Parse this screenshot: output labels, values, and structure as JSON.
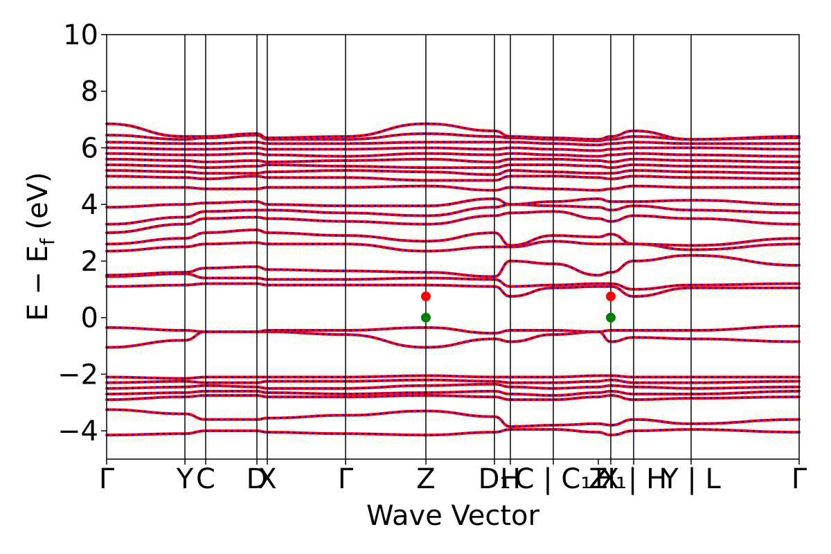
{
  "chart_data": {
    "type": "line",
    "title": "",
    "xlabel": "Wave Vector",
    "ylabel_main": "E − E",
    "ylabel_sub": "f",
    "ylabel_unit": " (eV)",
    "ylim": [
      -5,
      10
    ],
    "yticks": [
      -4,
      -2,
      0,
      2,
      4,
      6,
      8,
      10
    ],
    "ytick_labels": [
      "−4",
      "−2",
      "0",
      "2",
      "4",
      "6",
      "8",
      "10"
    ],
    "x_range": [
      0,
      1
    ],
    "kpath": [
      {
        "label": "Γ",
        "x": 0.0
      },
      {
        "label": "Y",
        "x": 0.113
      },
      {
        "label": "C",
        "x": 0.143
      },
      {
        "label": "D",
        "x": 0.217
      },
      {
        "label": "X",
        "x": 0.232
      },
      {
        "label": "Γ",
        "x": 0.345
      },
      {
        "label": "Z",
        "x": 0.461
      },
      {
        "label": "D₁",
        "x": 0.56
      },
      {
        "label": "H",
        "x": 0.583
      },
      {
        "label": "C | C₁",
        "x": 0.645
      },
      {
        "label": "Z",
        "x": 0.71
      },
      {
        "label": "H₁",
        "x": 0.728
      },
      {
        "label": "X | H",
        "x": 0.761
      },
      {
        "label": "Y | L",
        "x": 0.844
      },
      {
        "label": "Γ",
        "x": 1.0
      }
    ],
    "vlines_x": [
      0.113,
      0.143,
      0.217,
      0.232,
      0.345,
      0.461,
      0.56,
      0.583,
      0.645,
      0.728,
      0.761,
      0.844
    ],
    "series": [
      {
        "color": "#ff0000",
        "style": "solid"
      },
      {
        "color": "#0000ff",
        "style": "dotted"
      }
    ],
    "bands": [
      {
        "y": [
          -4.15,
          -4.1,
          -4.0,
          -4.0,
          -4.05,
          -4.1,
          -4.15,
          -4.05,
          -3.95,
          -3.95,
          -4.05,
          -4.15,
          -4.0,
          -3.95,
          -4.05,
          -4.15
        ]
      },
      {
        "y": [
          -3.25,
          -3.4,
          -3.6,
          -3.6,
          -3.55,
          -3.45,
          -3.3,
          -3.5,
          -3.85,
          -3.8,
          -3.75,
          -3.8,
          -3.6,
          -3.75,
          -3.6,
          -3.25
        ]
      },
      {
        "y": [
          -2.9,
          -2.8,
          -2.75,
          -2.75,
          -2.8,
          -2.8,
          -2.75,
          -2.8,
          -2.9,
          -2.9,
          -2.8,
          -2.75,
          -2.9,
          -2.85,
          -2.8,
          -2.7
        ]
      },
      {
        "y": [
          -2.7,
          -2.65,
          -2.6,
          -2.6,
          -2.65,
          -2.7,
          -2.65,
          -2.6,
          -2.7,
          -2.75,
          -2.65,
          -2.6,
          -2.7,
          -2.7,
          -2.6,
          -2.55
        ]
      },
      {
        "y": [
          -2.5,
          -2.45,
          -2.4,
          -2.45,
          -2.5,
          -2.5,
          -2.4,
          -2.35,
          -2.45,
          -2.5,
          -2.45,
          -2.4,
          -2.45,
          -2.5,
          -2.45,
          -2.4
        ]
      },
      {
        "y": [
          -2.3,
          -2.25,
          -2.3,
          -2.3,
          -2.25,
          -2.25,
          -2.2,
          -2.25,
          -2.3,
          -2.3,
          -2.25,
          -2.2,
          -2.3,
          -2.3,
          -2.25,
          -2.2
        ]
      },
      {
        "y": [
          -2.1,
          -2.15,
          -2.1,
          -2.1,
          -2.1,
          -2.1,
          -2.05,
          -2.1,
          -2.1,
          -2.1,
          -2.05,
          -2.05,
          -2.1,
          -2.1,
          -2.1,
          -2.05
        ]
      },
      {
        "y": [
          -1.05,
          -0.8,
          -0.5,
          -0.5,
          -0.5,
          -0.6,
          -1.05,
          -0.75,
          -0.85,
          -0.6,
          -0.5,
          -0.85,
          -0.7,
          -0.75,
          -0.85,
          -1.05
        ]
      },
      {
        "y": [
          -0.35,
          -0.45,
          -0.5,
          -0.5,
          -0.45,
          -0.45,
          -0.35,
          -0.55,
          -0.45,
          -0.45,
          -0.5,
          -0.45,
          -0.45,
          -0.45,
          -0.3,
          -0.35
        ]
      },
      {
        "y": [
          1.1,
          1.15,
          1.2,
          1.2,
          1.15,
          1.15,
          1.15,
          1.1,
          0.75,
          1.05,
          1.1,
          1.1,
          0.75,
          1.05,
          1.05,
          1.1
        ]
      },
      {
        "y": [
          1.45,
          1.55,
          1.4,
          1.4,
          1.35,
          1.35,
          1.4,
          1.35,
          1.1,
          1.15,
          1.2,
          1.2,
          1.0,
          1.15,
          1.2,
          1.4
        ]
      },
      {
        "y": [
          1.5,
          1.6,
          1.75,
          1.8,
          1.7,
          1.65,
          1.6,
          1.45,
          2.0,
          1.9,
          1.5,
          1.6,
          2.0,
          2.2,
          1.85,
          1.45
        ]
      },
      {
        "y": [
          2.35,
          2.5,
          2.6,
          2.65,
          2.6,
          2.6,
          2.35,
          2.5,
          2.5,
          2.7,
          2.6,
          2.6,
          2.6,
          2.4,
          2.6,
          2.4
        ]
      },
      {
        "y": [
          2.6,
          2.8,
          3.0,
          3.1,
          3.0,
          2.9,
          2.7,
          3.0,
          2.55,
          2.9,
          2.85,
          2.95,
          2.6,
          2.55,
          2.8,
          2.55
        ]
      },
      {
        "y": [
          3.0,
          3.3,
          3.5,
          3.55,
          3.5,
          3.4,
          3.3,
          3.6,
          3.7,
          3.75,
          3.5,
          3.4,
          3.6,
          3.5,
          3.3,
          3.2
        ]
      },
      {
        "y": [
          3.3,
          3.55,
          3.75,
          3.8,
          3.8,
          3.7,
          3.6,
          3.9,
          4.0,
          3.95,
          3.9,
          3.8,
          3.95,
          3.8,
          3.7,
          3.45
        ]
      },
      {
        "y": [
          3.9,
          4.0,
          4.05,
          4.1,
          4.0,
          3.95,
          3.95,
          4.2,
          4.0,
          4.1,
          4.2,
          4.1,
          4.1,
          4.15,
          4.0,
          3.95
        ]
      },
      {
        "y": [
          4.6,
          4.6,
          4.55,
          4.55,
          4.6,
          4.6,
          4.65,
          4.5,
          4.6,
          4.55,
          4.5,
          4.55,
          4.65,
          4.6,
          4.6,
          4.6
        ]
      },
      {
        "y": [
          5.0,
          4.95,
          4.9,
          5.0,
          4.95,
          4.95,
          4.85,
          4.85,
          5.0,
          5.0,
          4.95,
          4.9,
          5.0,
          4.95,
          4.9,
          5.0
        ]
      },
      {
        "y": [
          5.2,
          5.15,
          5.1,
          5.1,
          5.15,
          5.2,
          5.15,
          5.05,
          5.2,
          5.15,
          5.1,
          5.1,
          5.2,
          5.15,
          5.1,
          5.2
        ]
      },
      {
        "y": [
          5.4,
          5.35,
          5.3,
          5.35,
          5.4,
          5.35,
          5.3,
          5.3,
          5.4,
          5.4,
          5.35,
          5.3,
          5.4,
          5.35,
          5.3,
          5.4
        ]
      },
      {
        "y": [
          5.6,
          5.55,
          5.5,
          5.55,
          5.5,
          5.55,
          5.6,
          5.5,
          5.6,
          5.6,
          5.55,
          5.5,
          5.6,
          5.55,
          5.5,
          5.6
        ]
      },
      {
        "y": [
          5.8,
          5.75,
          5.75,
          5.8,
          5.75,
          5.7,
          5.8,
          5.75,
          5.8,
          5.75,
          5.7,
          5.75,
          5.8,
          5.75,
          5.7,
          5.8
        ]
      },
      {
        "y": [
          6.0,
          5.95,
          5.95,
          6.0,
          5.95,
          5.95,
          6.0,
          5.95,
          6.0,
          5.95,
          5.9,
          5.95,
          6.0,
          6.0,
          5.95,
          6.0
        ]
      },
      {
        "y": [
          6.2,
          6.15,
          6.15,
          6.2,
          6.15,
          6.15,
          6.2,
          6.2,
          6.2,
          6.15,
          6.1,
          6.15,
          6.2,
          6.15,
          6.15,
          6.2
        ]
      },
      {
        "y": [
          6.45,
          6.3,
          6.35,
          6.45,
          6.3,
          6.3,
          6.5,
          6.4,
          6.35,
          6.3,
          6.25,
          6.3,
          6.4,
          6.3,
          6.35,
          6.45
        ]
      },
      {
        "y": [
          6.85,
          6.4,
          6.4,
          6.5,
          6.35,
          6.4,
          6.85,
          6.6,
          6.4,
          6.35,
          6.3,
          6.4,
          6.6,
          6.3,
          6.4,
          6.85
        ]
      }
    ],
    "markers": [
      {
        "x": 0.461,
        "y": 0.75,
        "color": "#ff0000"
      },
      {
        "x": 0.461,
        "y": 0.0,
        "color": "#008000"
      },
      {
        "x": 0.728,
        "y": 0.75,
        "color": "#ff0000"
      },
      {
        "x": 0.728,
        "y": 0.0,
        "color": "#008000"
      }
    ]
  }
}
